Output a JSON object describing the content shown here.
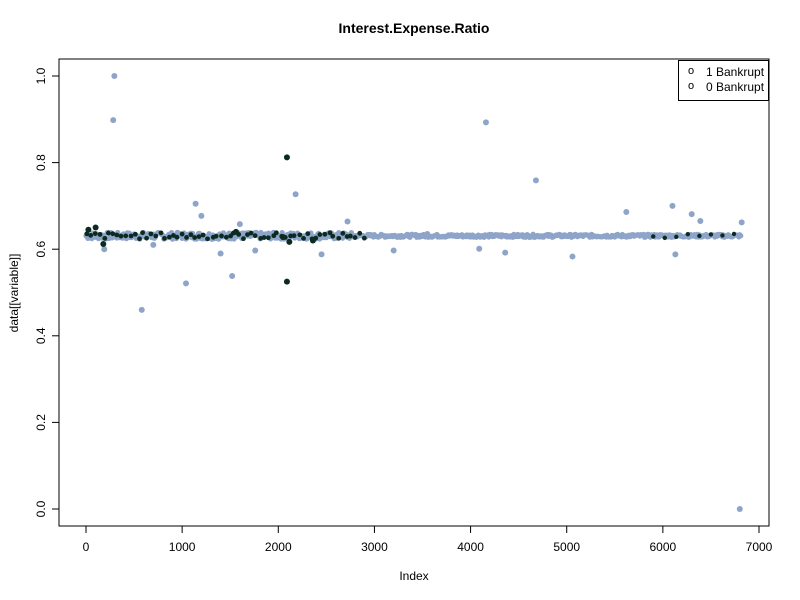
{
  "chart_data": {
    "type": "scatter",
    "title": "Interest.Expense.Ratio",
    "xlabel": "Index",
    "ylabel": "data[[variable]]",
    "xlim": [
      0,
      7000
    ],
    "ylim": [
      0,
      1.0
    ],
    "x_ticks": [
      0,
      1000,
      2000,
      3000,
      4000,
      5000,
      6000,
      7000
    ],
    "y_ticks": [
      "0.0",
      "0.2",
      "0.4",
      "0.6",
      "0.8",
      "1.0"
    ],
    "grid": false,
    "legend_position": "top-right",
    "legend": [
      {
        "label": "1 Bankrupt",
        "symbol": "o"
      },
      {
        "label": "0 Bankrupt",
        "symbol": "o"
      }
    ],
    "band": {
      "center": 0.631,
      "x_range": [
        0,
        6819
      ],
      "note_spread": 0.01
    },
    "series": [
      {
        "name": "0 Bankrupt",
        "color": "#8ea4c8",
        "points": [
          [
            295,
            1.0
          ],
          [
            283,
            0.898
          ],
          [
            4160,
            0.893
          ],
          [
            4680,
            0.759
          ],
          [
            2180,
            0.727
          ],
          [
            1140,
            0.705
          ],
          [
            6100,
            0.7
          ],
          [
            5620,
            0.686
          ],
          [
            6300,
            0.681
          ],
          [
            1200,
            0.677
          ],
          [
            6390,
            0.665
          ],
          [
            6820,
            0.662
          ],
          [
            2720,
            0.664
          ],
          [
            1600,
            0.658
          ],
          [
            3200,
            0.597
          ],
          [
            4090,
            0.601
          ],
          [
            4360,
            0.592
          ],
          [
            6130,
            0.588
          ],
          [
            2450,
            0.588
          ],
          [
            5060,
            0.583
          ],
          [
            1400,
            0.59
          ],
          [
            1760,
            0.597
          ],
          [
            1520,
            0.538
          ],
          [
            1040,
            0.521
          ],
          [
            580,
            0.46
          ],
          [
            6800,
            0.0
          ],
          [
            190,
            0.6
          ],
          [
            700,
            0.61
          ],
          [
            3550,
            0.635
          ]
        ]
      },
      {
        "name": "1 Bankrupt",
        "color": "#0b2a20",
        "points": [
          [
            2090,
            0.812
          ],
          [
            2090,
            0.525
          ],
          [
            2360,
            0.62
          ],
          [
            180,
            0.612
          ],
          [
            25,
            0.645
          ],
          [
            100,
            0.65
          ],
          [
            2050,
            0.628
          ],
          [
            2115,
            0.617
          ],
          [
            1560,
            0.64
          ]
        ]
      }
    ]
  }
}
